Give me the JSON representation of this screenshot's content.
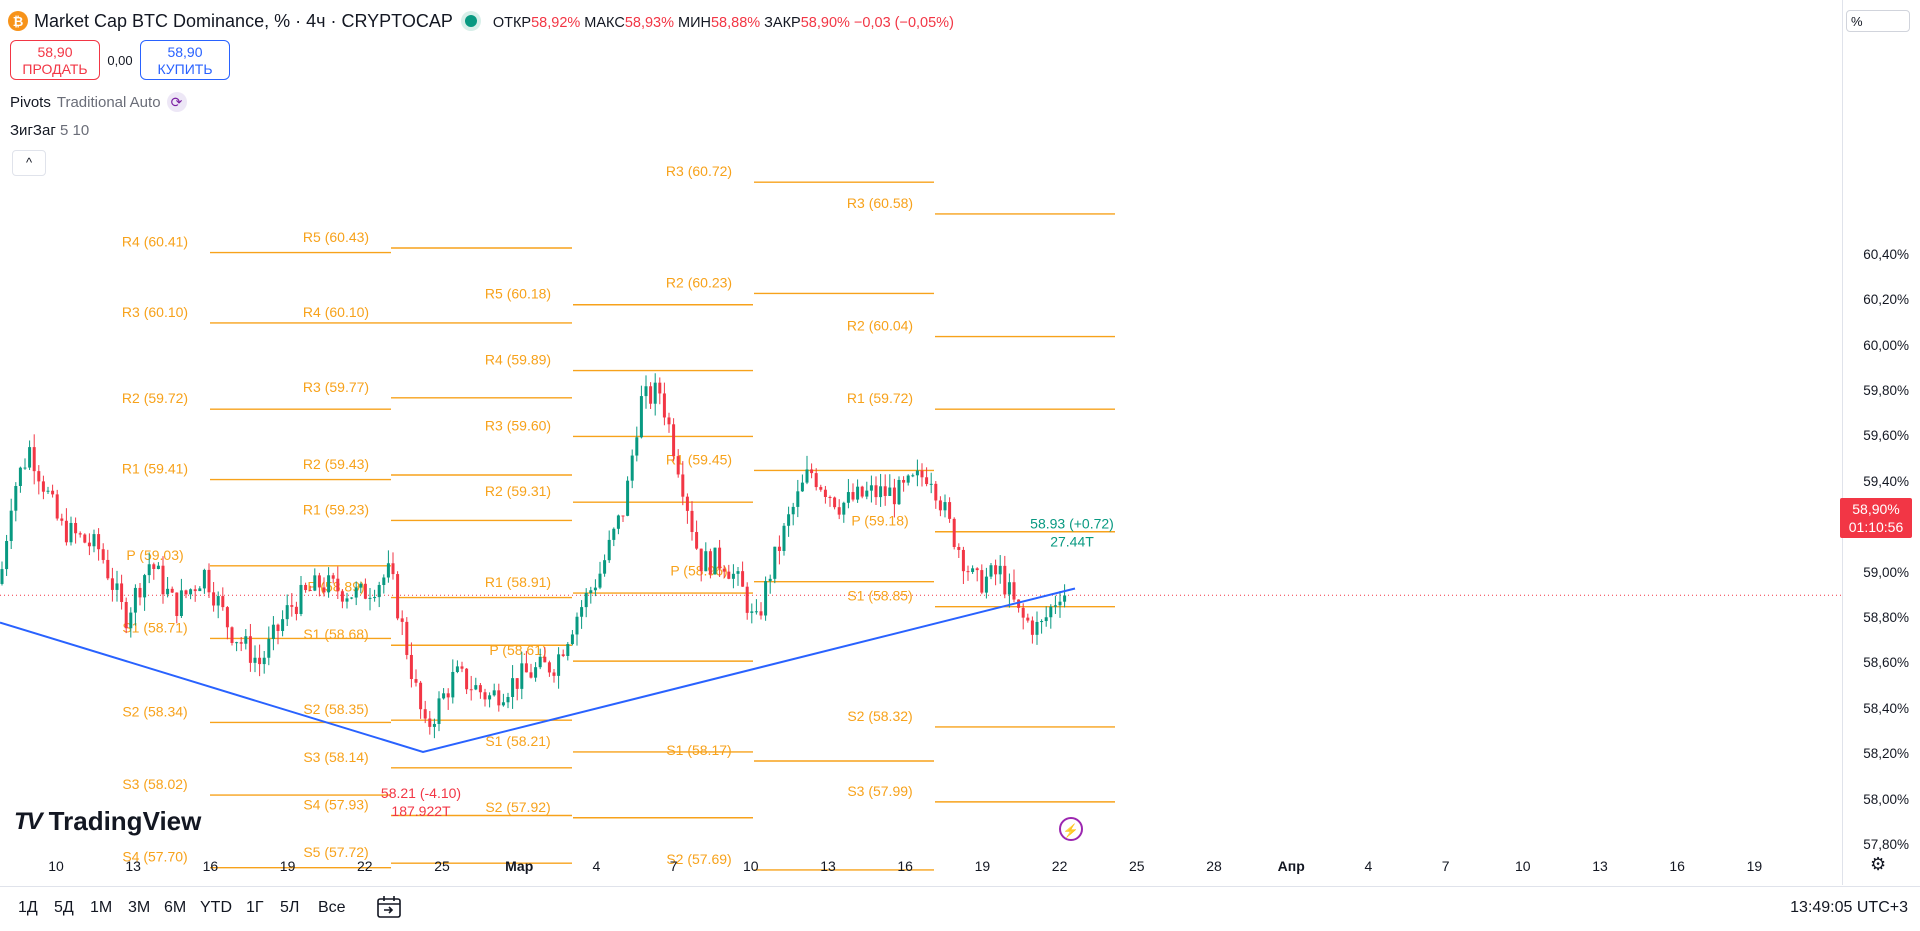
{
  "header": {
    "symbol_title": "Market Cap BTC Dominance, % · 4ч · CRYPTOCAP",
    "coin_icon": "bitcoin-icon",
    "ohlc": [
      {
        "label": "ОТКР",
        "value": "58,92%"
      },
      {
        "label": "МАКС",
        "value": "58,93%"
      },
      {
        "label": "МИН",
        "value": "58,88%"
      },
      {
        "label": "ЗАКР",
        "value": "58,90% −0,03 (−0,05%)"
      }
    ]
  },
  "trade": {
    "sell_price": "58,90",
    "sell_label": "ПРОДАТЬ",
    "spread": "0,00",
    "buy_price": "58,90",
    "buy_label": "КУПИТЬ"
  },
  "indicators": {
    "pivots_name": "Pivots",
    "pivots_params": "Traditional Auto",
    "zigzag_name": "ЗигЗаг",
    "zigzag_params": "5 10",
    "collapse_symbol": "^"
  },
  "price_axis": {
    "unit": "%",
    "current_price": "58,90%",
    "countdown": "01:10:56",
    "ticks": [
      "60,40%",
      "60,20%",
      "60,00%",
      "59,80%",
      "59,60%",
      "59,40%",
      "59,20%",
      "59,00%",
      "58,80%",
      "58,60%",
      "58,40%",
      "58,20%",
      "58,00%",
      "57,80%"
    ]
  },
  "time_axis": {
    "labels": [
      {
        "text": "10"
      },
      {
        "text": "13"
      },
      {
        "text": "16"
      },
      {
        "text": "19"
      },
      {
        "text": "22"
      },
      {
        "text": "25"
      },
      {
        "text": "Мар",
        "bold": true
      },
      {
        "text": "4"
      },
      {
        "text": "7"
      },
      {
        "text": "10"
      },
      {
        "text": "13"
      },
      {
        "text": "16"
      },
      {
        "text": "19"
      },
      {
        "text": "22"
      },
      {
        "text": "25"
      },
      {
        "text": "28"
      },
      {
        "text": "Апр",
        "bold": true
      },
      {
        "text": "4"
      },
      {
        "text": "7"
      },
      {
        "text": "10"
      },
      {
        "text": "13"
      },
      {
        "text": "16"
      },
      {
        "text": "19"
      }
    ]
  },
  "bottom_bar": {
    "ranges": [
      "1Д",
      "5Д",
      "1М",
      "3М",
      "6М",
      "YTD",
      "1Г",
      "5Л",
      "Все"
    ],
    "clock": "13:49:05 UTC+3"
  },
  "logo_text": "TradingView",
  "chart_data": {
    "type": "candlestick",
    "title": "Market Cap BTC Dominance, %",
    "interval": "4ч",
    "y_unit": "%",
    "ylim": [
      57.72,
      60.74
    ],
    "colors": {
      "up": "#089981",
      "down": "#f23645",
      "pivot": "#f7a21b",
      "zigzag": "#2962ff"
    },
    "current_price": 58.9,
    "pivot_periods": [
      {
        "levels": [
          {
            "label": "P",
            "value": 59.03
          },
          {
            "label": "R1",
            "value": 59.41
          },
          {
            "label": "R2",
            "value": 59.72
          },
          {
            "label": "R3",
            "value": 60.1
          },
          {
            "label": "R4",
            "value": 60.41
          },
          {
            "label": "S1",
            "value": 58.71
          },
          {
            "label": "S2",
            "value": 58.34
          },
          {
            "label": "S3",
            "value": 58.02
          },
          {
            "label": "S4",
            "value": 57.7
          }
        ]
      },
      {
        "levels": [
          {
            "label": "P",
            "value": 58.89
          },
          {
            "label": "R1",
            "value": 59.23
          },
          {
            "label": "R2",
            "value": 59.43
          },
          {
            "label": "R3",
            "value": 59.77
          },
          {
            "label": "R4",
            "value": 60.1
          },
          {
            "label": "R5",
            "value": 60.43
          },
          {
            "label": "S1",
            "value": 58.68
          },
          {
            "label": "S2",
            "value": 58.35
          },
          {
            "label": "S3",
            "value": 58.14
          },
          {
            "label": "S4",
            "value": 57.93
          },
          {
            "label": "S5",
            "value": 57.72
          }
        ]
      },
      {
        "levels": [
          {
            "label": "P",
            "value": 58.61
          },
          {
            "label": "R1",
            "value": 58.91
          },
          {
            "label": "R2",
            "value": 59.31
          },
          {
            "label": "R3",
            "value": 59.6
          },
          {
            "label": "R4",
            "value": 59.89
          },
          {
            "label": "R5",
            "value": 60.18
          },
          {
            "label": "S1",
            "value": 58.21
          },
          {
            "label": "S2",
            "value": 57.92
          }
        ]
      },
      {
        "levels": [
          {
            "label": "P",
            "value": 58.96
          },
          {
            "label": "R1",
            "value": 59.45
          },
          {
            "label": "R2",
            "value": 60.23
          },
          {
            "label": "R3",
            "value": 60.72
          },
          {
            "label": "S1",
            "value": 58.17
          },
          {
            "label": "S2",
            "value": 57.69
          }
        ]
      },
      {
        "levels": [
          {
            "label": "P",
            "value": 59.18
          },
          {
            "label": "R1",
            "value": 59.72
          },
          {
            "label": "R2",
            "value": 60.04
          },
          {
            "label": "R3",
            "value": 60.58
          },
          {
            "label": "S1",
            "value": 58.85
          },
          {
            "label": "S2",
            "value": 58.32
          },
          {
            "label": "S3",
            "value": 57.99
          }
        ]
      }
    ],
    "zigzag": {
      "points": [
        {
          "value": 58.78
        },
        {
          "value": 58.21
        },
        {
          "value": 58.93
        }
      ],
      "labels": [
        {
          "value_text": "58.21 (-4.10)",
          "volume_text": "187.922T"
        },
        {
          "value_text": "58.93 (+0.72)",
          "volume_text": "27.44T"
        }
      ]
    }
  }
}
